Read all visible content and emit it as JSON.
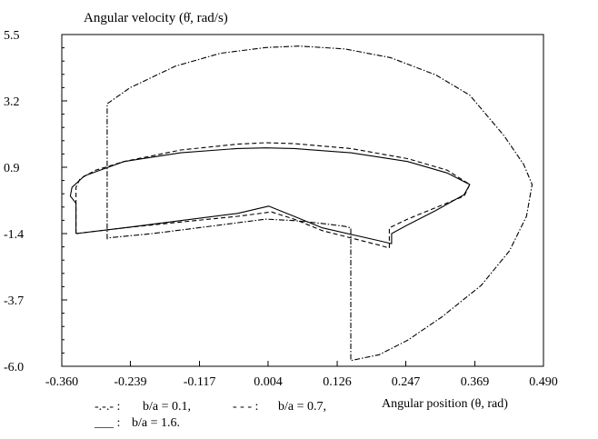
{
  "chart_data": {
    "type": "line",
    "ylabel": "Angular velocity  (θ̇,  rad/s)",
    "xlabel": "Angular position (θ,  rad)",
    "xlim": [
      -0.36,
      0.49
    ],
    "ylim": [
      -6.0,
      5.5
    ],
    "x_ticks": [
      "-0.360",
      "-0.239",
      "-0.117",
      "0.004",
      "0.126",
      "0.247",
      "0.369",
      "0.490"
    ],
    "y_ticks": [
      "5.5",
      "3.2",
      "0.9",
      "-1.4",
      "-3.7",
      "-6.0"
    ],
    "legend": [
      {
        "marker": "-.-.- :",
        "label": "b/a = 0.1,"
      },
      {
        "marker": "- - - :",
        "label": "b/a = 0.7,"
      },
      {
        "marker": "___ :",
        "label": "b/a = 1.6."
      }
    ],
    "series": [
      {
        "style": "dashdot",
        "x": [
          -0.28,
          -0.28,
          -0.24,
          -0.16,
          -0.08,
          0.0,
          0.06,
          0.14,
          0.22,
          0.3,
          0.36,
          0.42,
          0.455,
          0.47,
          0.46,
          0.43,
          0.38,
          0.31,
          0.25,
          0.2,
          0.15,
          0.15,
          0.14,
          0.1,
          0.05,
          0.0,
          -0.06,
          -0.12,
          -0.2,
          -0.28,
          -0.28
        ],
        "y": [
          -1.6,
          3.1,
          3.65,
          4.4,
          4.85,
          5.05,
          5.1,
          5.0,
          4.7,
          4.1,
          3.4,
          2.0,
          1.0,
          0.3,
          -0.8,
          -2.0,
          -3.2,
          -4.3,
          -5.1,
          -5.6,
          -5.8,
          -1.2,
          -1.15,
          -1.05,
          -0.95,
          -0.9,
          -1.05,
          -1.2,
          -1.4,
          -1.55,
          -1.6
        ]
      },
      {
        "style": "dashed",
        "x": [
          -0.335,
          -0.335,
          -0.328,
          -0.3,
          -0.25,
          -0.15,
          -0.05,
          0.0,
          0.05,
          0.15,
          0.25,
          0.32,
          0.36,
          0.35,
          0.3,
          0.25,
          0.218,
          0.218,
          0.2,
          0.1,
          0.05,
          0.01,
          -0.05,
          -0.15,
          -0.25,
          -0.335
        ],
        "y": [
          -1.4,
          0.2,
          0.5,
          0.8,
          1.1,
          1.5,
          1.7,
          1.75,
          1.72,
          1.55,
          1.2,
          0.8,
          0.3,
          -0.1,
          -0.5,
          -0.9,
          -1.2,
          -1.9,
          -1.8,
          -1.3,
          -0.9,
          -0.65,
          -0.8,
          -1.0,
          -1.2,
          -1.4
        ]
      },
      {
        "style": "solid",
        "x": [
          -0.335,
          -0.335,
          -0.345,
          -0.342,
          -0.32,
          -0.25,
          -0.15,
          -0.05,
          0.0,
          0.05,
          0.15,
          0.25,
          0.32,
          0.36,
          0.35,
          0.3,
          0.25,
          0.222,
          0.222,
          0.2,
          0.1,
          0.05,
          0.005,
          -0.05,
          -0.15,
          -0.25,
          -0.335
        ],
        "y": [
          -1.4,
          -0.35,
          -0.1,
          0.2,
          0.6,
          1.1,
          1.4,
          1.55,
          1.57,
          1.55,
          1.4,
          1.1,
          0.7,
          0.3,
          -0.05,
          -0.6,
          -1.1,
          -1.4,
          -1.75,
          -1.65,
          -1.2,
          -0.8,
          -0.45,
          -0.7,
          -0.95,
          -1.2,
          -1.4
        ]
      }
    ]
  }
}
